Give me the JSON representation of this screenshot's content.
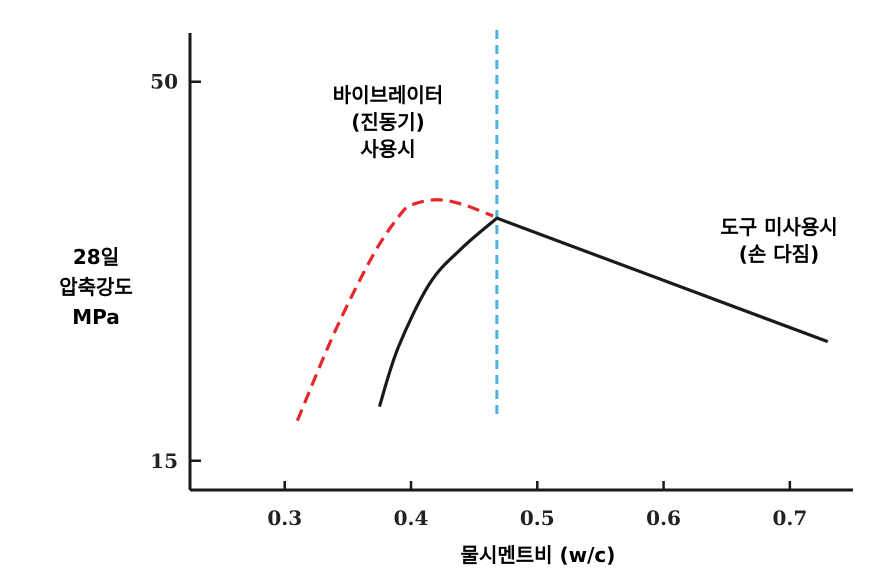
{
  "chart_data": {
    "type": "line",
    "xlabel": "물시멘트비 (w/c)",
    "ylabel_lines": [
      "28일",
      "압축강도",
      "MPa"
    ],
    "x_ticks": [
      "0.3",
      "0.4",
      "0.5",
      "0.6",
      "0.7"
    ],
    "y_ticks": [
      "50",
      "15"
    ],
    "xlim": [
      0.225,
      0.75
    ],
    "ylim": [
      12.3,
      54.5
    ],
    "grid": false,
    "series": [
      {
        "name": "바이브레이터 (진동기) 사용시",
        "color": "#e8262a",
        "style": "dashed",
        "x": [
          0.31,
          0.34,
          0.37,
          0.39,
          0.4,
          0.42,
          0.44,
          0.465
        ],
        "y": [
          18.7,
          27.0,
          34.0,
          37.5,
          38.6,
          39.1,
          38.7,
          37.6
        ]
      },
      {
        "name": "도구 미사용시 (손 다짐)",
        "color": "#1a1a1a",
        "style": "solid",
        "x": [
          0.375,
          0.39,
          0.415,
          0.44,
          0.468,
          0.55,
          0.65,
          0.73
        ],
        "y": [
          20.0,
          25.5,
          31.4,
          34.6,
          37.4,
          34.0,
          29.2,
          26.0
        ]
      }
    ],
    "reference_lines": [
      {
        "axis": "x",
        "value": 0.468,
        "color": "#4ab4dc",
        "style": "dashed"
      }
    ],
    "annotations": [
      {
        "lines": [
          "바이브레이터",
          "(진동기)",
          "사용시"
        ],
        "series": 0
      },
      {
        "lines": [
          "도구 미사용시",
          "(손 다짐)"
        ],
        "series": 1
      }
    ]
  }
}
